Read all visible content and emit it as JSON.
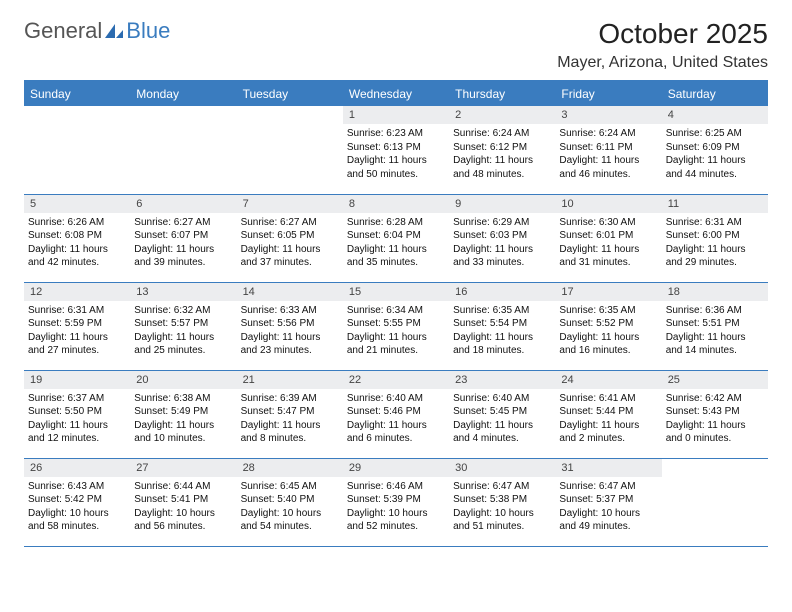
{
  "logo": {
    "general": "General",
    "blue": "Blue"
  },
  "header": {
    "title": "October 2025",
    "location": "Mayer, Arizona, United States"
  },
  "colors": {
    "header_bg": "#3a7cbf",
    "header_text": "#ffffff",
    "row_border": "#3a7cbf",
    "daynum_bg": "#ecedef",
    "page_bg": "#ffffff",
    "text": "#000000"
  },
  "days": [
    "Sunday",
    "Monday",
    "Tuesday",
    "Wednesday",
    "Thursday",
    "Friday",
    "Saturday"
  ],
  "weeks": [
    [
      {
        "n": "",
        "sr": "",
        "ss": "",
        "dl": ""
      },
      {
        "n": "",
        "sr": "",
        "ss": "",
        "dl": ""
      },
      {
        "n": "",
        "sr": "",
        "ss": "",
        "dl": ""
      },
      {
        "n": "1",
        "sr": "Sunrise: 6:23 AM",
        "ss": "Sunset: 6:13 PM",
        "dl": "Daylight: 11 hours and 50 minutes."
      },
      {
        "n": "2",
        "sr": "Sunrise: 6:24 AM",
        "ss": "Sunset: 6:12 PM",
        "dl": "Daylight: 11 hours and 48 minutes."
      },
      {
        "n": "3",
        "sr": "Sunrise: 6:24 AM",
        "ss": "Sunset: 6:11 PM",
        "dl": "Daylight: 11 hours and 46 minutes."
      },
      {
        "n": "4",
        "sr": "Sunrise: 6:25 AM",
        "ss": "Sunset: 6:09 PM",
        "dl": "Daylight: 11 hours and 44 minutes."
      }
    ],
    [
      {
        "n": "5",
        "sr": "Sunrise: 6:26 AM",
        "ss": "Sunset: 6:08 PM",
        "dl": "Daylight: 11 hours and 42 minutes."
      },
      {
        "n": "6",
        "sr": "Sunrise: 6:27 AM",
        "ss": "Sunset: 6:07 PM",
        "dl": "Daylight: 11 hours and 39 minutes."
      },
      {
        "n": "7",
        "sr": "Sunrise: 6:27 AM",
        "ss": "Sunset: 6:05 PM",
        "dl": "Daylight: 11 hours and 37 minutes."
      },
      {
        "n": "8",
        "sr": "Sunrise: 6:28 AM",
        "ss": "Sunset: 6:04 PM",
        "dl": "Daylight: 11 hours and 35 minutes."
      },
      {
        "n": "9",
        "sr": "Sunrise: 6:29 AM",
        "ss": "Sunset: 6:03 PM",
        "dl": "Daylight: 11 hours and 33 minutes."
      },
      {
        "n": "10",
        "sr": "Sunrise: 6:30 AM",
        "ss": "Sunset: 6:01 PM",
        "dl": "Daylight: 11 hours and 31 minutes."
      },
      {
        "n": "11",
        "sr": "Sunrise: 6:31 AM",
        "ss": "Sunset: 6:00 PM",
        "dl": "Daylight: 11 hours and 29 minutes."
      }
    ],
    [
      {
        "n": "12",
        "sr": "Sunrise: 6:31 AM",
        "ss": "Sunset: 5:59 PM",
        "dl": "Daylight: 11 hours and 27 minutes."
      },
      {
        "n": "13",
        "sr": "Sunrise: 6:32 AM",
        "ss": "Sunset: 5:57 PM",
        "dl": "Daylight: 11 hours and 25 minutes."
      },
      {
        "n": "14",
        "sr": "Sunrise: 6:33 AM",
        "ss": "Sunset: 5:56 PM",
        "dl": "Daylight: 11 hours and 23 minutes."
      },
      {
        "n": "15",
        "sr": "Sunrise: 6:34 AM",
        "ss": "Sunset: 5:55 PM",
        "dl": "Daylight: 11 hours and 21 minutes."
      },
      {
        "n": "16",
        "sr": "Sunrise: 6:35 AM",
        "ss": "Sunset: 5:54 PM",
        "dl": "Daylight: 11 hours and 18 minutes."
      },
      {
        "n": "17",
        "sr": "Sunrise: 6:35 AM",
        "ss": "Sunset: 5:52 PM",
        "dl": "Daylight: 11 hours and 16 minutes."
      },
      {
        "n": "18",
        "sr": "Sunrise: 6:36 AM",
        "ss": "Sunset: 5:51 PM",
        "dl": "Daylight: 11 hours and 14 minutes."
      }
    ],
    [
      {
        "n": "19",
        "sr": "Sunrise: 6:37 AM",
        "ss": "Sunset: 5:50 PM",
        "dl": "Daylight: 11 hours and 12 minutes."
      },
      {
        "n": "20",
        "sr": "Sunrise: 6:38 AM",
        "ss": "Sunset: 5:49 PM",
        "dl": "Daylight: 11 hours and 10 minutes."
      },
      {
        "n": "21",
        "sr": "Sunrise: 6:39 AM",
        "ss": "Sunset: 5:47 PM",
        "dl": "Daylight: 11 hours and 8 minutes."
      },
      {
        "n": "22",
        "sr": "Sunrise: 6:40 AM",
        "ss": "Sunset: 5:46 PM",
        "dl": "Daylight: 11 hours and 6 minutes."
      },
      {
        "n": "23",
        "sr": "Sunrise: 6:40 AM",
        "ss": "Sunset: 5:45 PM",
        "dl": "Daylight: 11 hours and 4 minutes."
      },
      {
        "n": "24",
        "sr": "Sunrise: 6:41 AM",
        "ss": "Sunset: 5:44 PM",
        "dl": "Daylight: 11 hours and 2 minutes."
      },
      {
        "n": "25",
        "sr": "Sunrise: 6:42 AM",
        "ss": "Sunset: 5:43 PM",
        "dl": "Daylight: 11 hours and 0 minutes."
      }
    ],
    [
      {
        "n": "26",
        "sr": "Sunrise: 6:43 AM",
        "ss": "Sunset: 5:42 PM",
        "dl": "Daylight: 10 hours and 58 minutes."
      },
      {
        "n": "27",
        "sr": "Sunrise: 6:44 AM",
        "ss": "Sunset: 5:41 PM",
        "dl": "Daylight: 10 hours and 56 minutes."
      },
      {
        "n": "28",
        "sr": "Sunrise: 6:45 AM",
        "ss": "Sunset: 5:40 PM",
        "dl": "Daylight: 10 hours and 54 minutes."
      },
      {
        "n": "29",
        "sr": "Sunrise: 6:46 AM",
        "ss": "Sunset: 5:39 PM",
        "dl": "Daylight: 10 hours and 52 minutes."
      },
      {
        "n": "30",
        "sr": "Sunrise: 6:47 AM",
        "ss": "Sunset: 5:38 PM",
        "dl": "Daylight: 10 hours and 51 minutes."
      },
      {
        "n": "31",
        "sr": "Sunrise: 6:47 AM",
        "ss": "Sunset: 5:37 PM",
        "dl": "Daylight: 10 hours and 49 minutes."
      },
      {
        "n": "",
        "sr": "",
        "ss": "",
        "dl": ""
      }
    ]
  ]
}
